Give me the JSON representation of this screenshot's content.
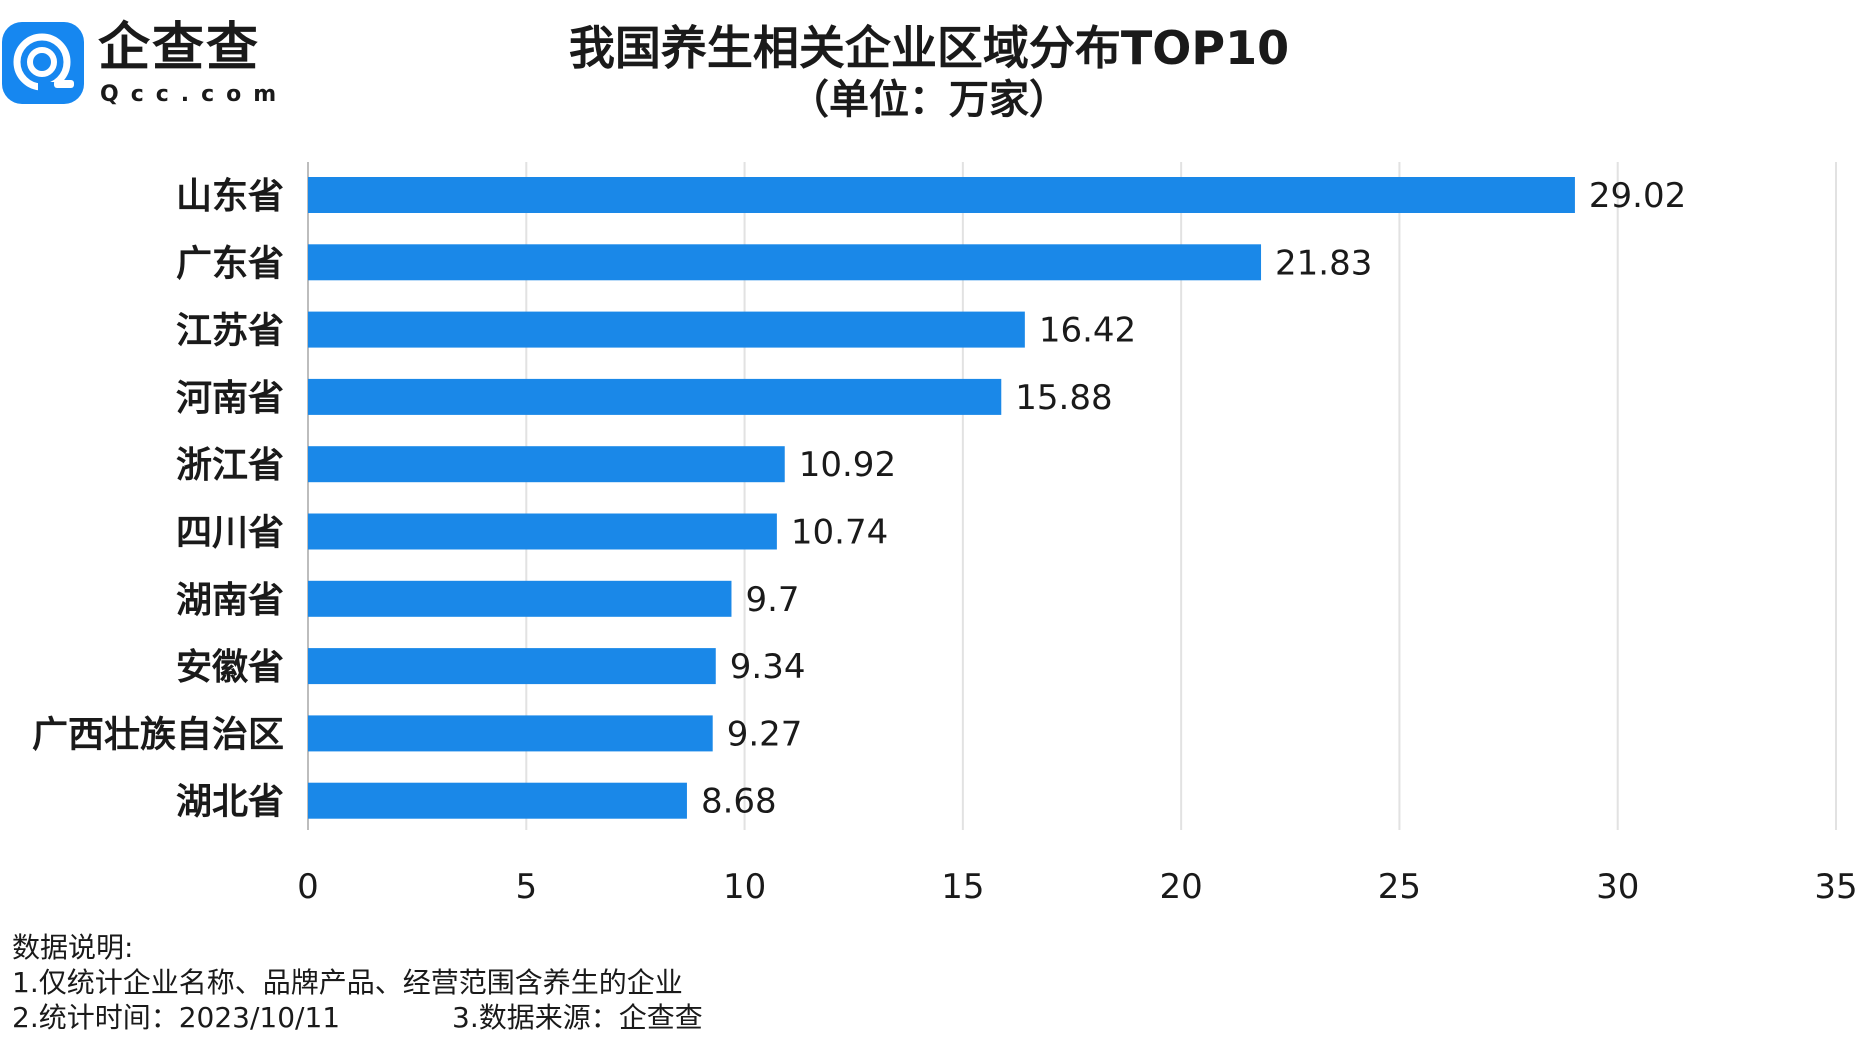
{
  "brand": {
    "name_cn": "企查查",
    "name_en": "Qcc.com",
    "color": "#1687f0"
  },
  "header": {
    "title": "我国养生相关企业区域分布TOP10",
    "subtitle": "（单位：万家）"
  },
  "chart_data": {
    "type": "bar",
    "orientation": "horizontal",
    "title": "我国养生相关企业区域分布TOP10",
    "subtitle": "（单位：万家）",
    "categories": [
      "山东省",
      "广东省",
      "江苏省",
      "河南省",
      "浙江省",
      "四川省",
      "湖南省",
      "安徽省",
      "广西壮族自治区",
      "湖北省"
    ],
    "values": [
      29.02,
      21.83,
      16.42,
      15.88,
      10.92,
      10.74,
      9.7,
      9.34,
      9.27,
      8.68
    ],
    "value_labels": [
      "29.02",
      "21.83",
      "16.42",
      "15.88",
      "10.92",
      "10.74",
      "9.7",
      "9.34",
      "9.27",
      "8.68"
    ],
    "xlim": [
      0,
      35
    ],
    "xticks": [
      0,
      5,
      10,
      15,
      20,
      25,
      30,
      35
    ],
    "xtick_labels": [
      "0",
      "5",
      "10",
      "15",
      "20",
      "25",
      "30",
      "35"
    ],
    "grid": "vertical",
    "bar_color": "#1a88e8",
    "grid_color": "#e2e2e2",
    "xlabel": "",
    "ylabel": ""
  },
  "notes": {
    "heading": "数据说明:",
    "line1": "1.仅统计企业名称、品牌产品、经营范围含养生的企业",
    "line2": "2.统计时间：2023/10/11",
    "line3": "3.数据来源：企查查"
  }
}
